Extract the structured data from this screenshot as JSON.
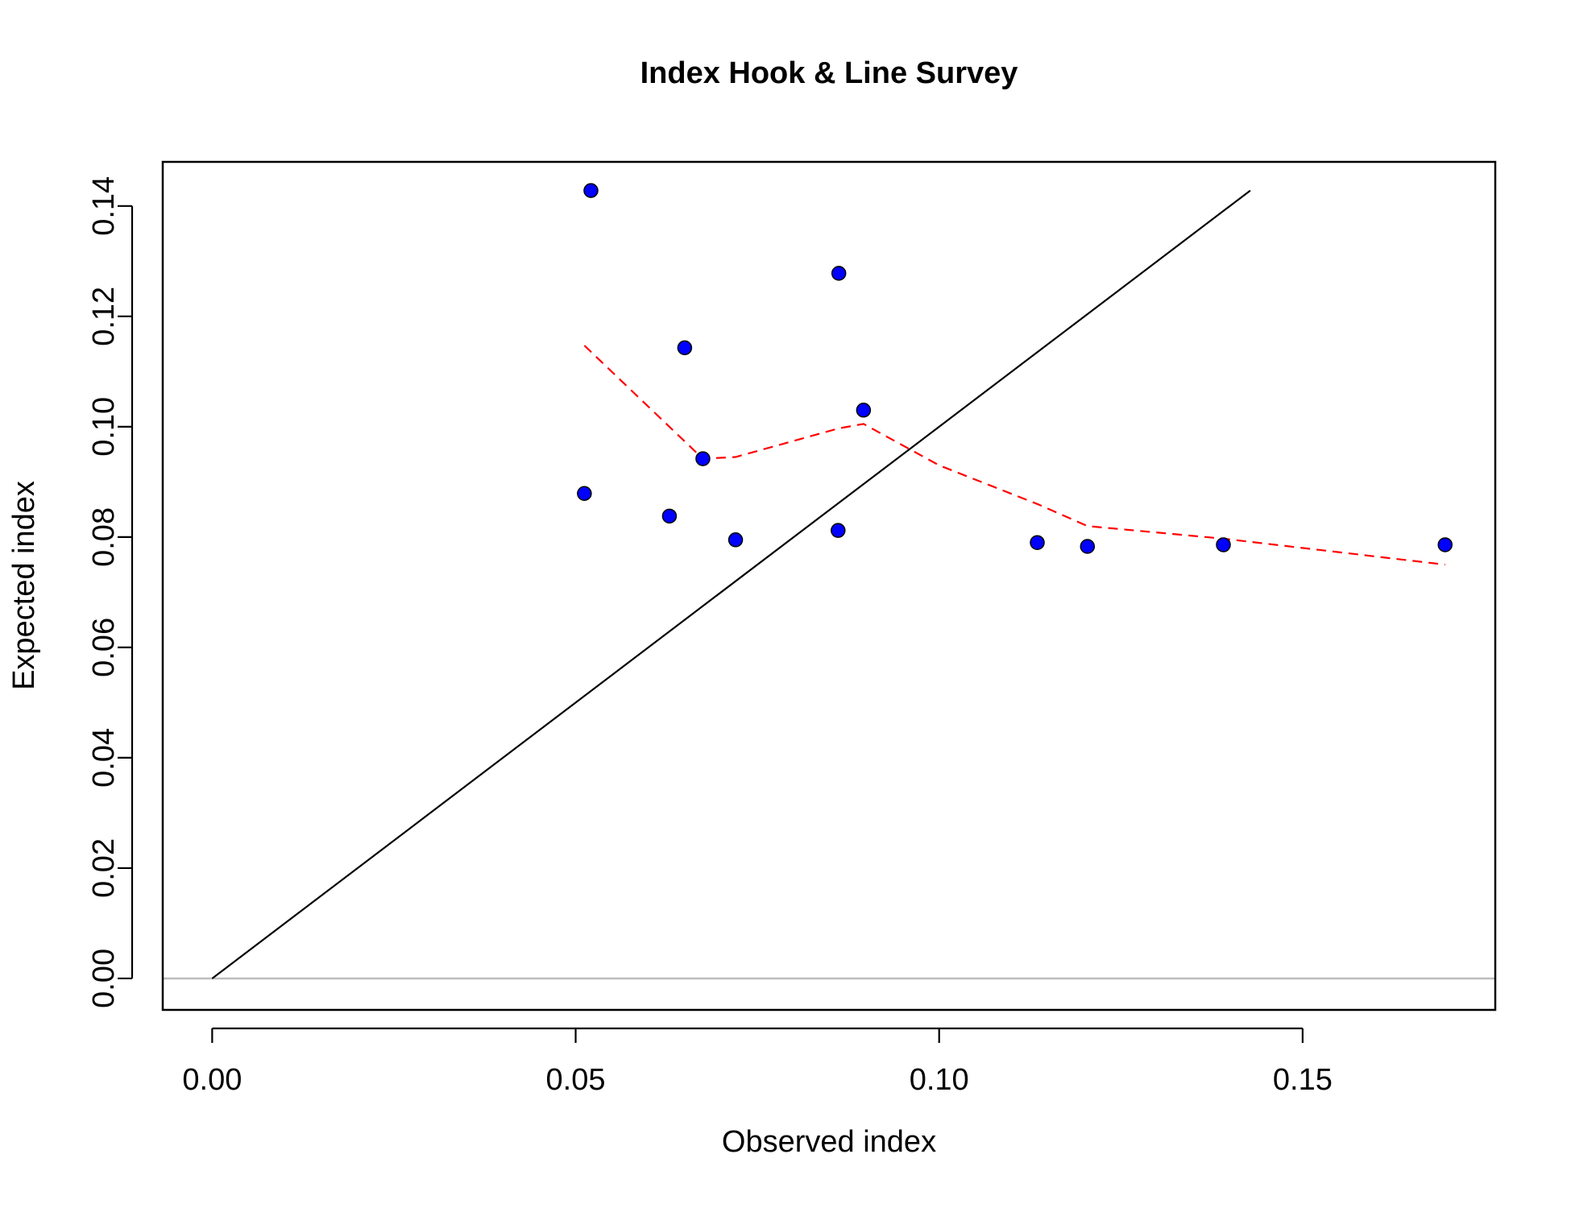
{
  "chart_data": {
    "type": "scatter",
    "title": "Index Hook & Line Survey",
    "xlabel": "Observed index",
    "ylabel": "Expected index",
    "xlim": [
      -0.0068,
      0.1765
    ],
    "ylim": [
      -0.0057,
      0.148
    ],
    "xticks": [
      0.0,
      0.05,
      0.1,
      0.15
    ],
    "xtick_labels": [
      "0.00",
      "0.05",
      "0.10",
      "0.15"
    ],
    "yticks": [
      0.0,
      0.02,
      0.04,
      0.06,
      0.08,
      0.1,
      0.12,
      0.14
    ],
    "ytick_labels": [
      "0.00",
      "0.02",
      "0.04",
      "0.06",
      "0.08",
      "0.10",
      "0.12",
      "0.14"
    ],
    "grid": false,
    "points": {
      "x": [
        0.0512,
        0.0521,
        0.0629,
        0.065,
        0.0675,
        0.072,
        0.0861,
        0.0862,
        0.0896,
        0.1135,
        0.1204,
        0.1391,
        0.1696
      ],
      "y": [
        0.0879,
        0.1428,
        0.0838,
        0.1143,
        0.0942,
        0.0795,
        0.0812,
        0.1278,
        0.103,
        0.079,
        0.0783,
        0.0786,
        0.0786
      ],
      "color": "#0000ff",
      "edge_color": "#000000"
    },
    "identity_line": {
      "x": [
        0.0,
        0.1428
      ],
      "y": [
        0.0,
        0.1428
      ],
      "color": "#000000"
    },
    "smoother": {
      "x": [
        0.0512,
        0.0675,
        0.072,
        0.0862,
        0.0896,
        0.1,
        0.1135,
        0.1204,
        0.1391,
        0.1696
      ],
      "y": [
        0.1147,
        0.0942,
        0.0945,
        0.0997,
        0.1005,
        0.093,
        0.086,
        0.082,
        0.0797,
        0.075
      ],
      "color": "#ff0000",
      "style": "dashed"
    },
    "zero_line": {
      "y": 0.0,
      "color": "#bebebe"
    }
  }
}
